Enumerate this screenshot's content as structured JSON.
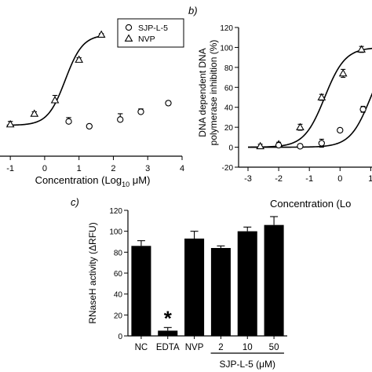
{
  "chart_data": [
    {
      "panel": "a",
      "type": "scatter",
      "xlabel": "Concentration (Log",
      "xlabel_sub": "10",
      "xlabel_unit": " μM)",
      "xlim": [
        -1.3,
        4
      ],
      "ylim": [
        -22,
        122
      ],
      "xticks": [
        -1,
        0,
        1,
        2,
        3,
        4
      ],
      "xtick_labels": [
        "-1",
        "0",
        "1",
        "2",
        "3",
        "4"
      ],
      "legend": {
        "placement": "top-right",
        "entries": [
          {
            "label": "SJP-L-5",
            "marker": "circle"
          },
          {
            "label": "NVP",
            "marker": "triangle"
          }
        ]
      },
      "series": [
        {
          "name": "SJP-L-5",
          "marker": "circle",
          "fit": false,
          "x": [
            0.7,
            1.3,
            2.2,
            2.8,
            3.6
          ],
          "y": [
            14,
            9,
            16,
            24,
            33
          ],
          "err": [
            4,
            2,
            6,
            3,
            2
          ]
        },
        {
          "name": "NVP",
          "marker": "triangle",
          "fit": true,
          "x": [
            -1.0,
            -0.3,
            0.3,
            1.0,
            1.65
          ],
          "y": [
            11,
            22,
            36,
            78,
            104
          ],
          "err": [
            3,
            2,
            5,
            2,
            1
          ]
        }
      ],
      "fits": [
        {
          "series": "NVP",
          "bottom": 10,
          "top": 104,
          "logEC50": 0.6,
          "hill": 1.7,
          "xrange": [
            -1.1,
            1.7
          ]
        }
      ]
    },
    {
      "panel": "b",
      "panel_label": "b)",
      "type": "scatter",
      "ylabel_line1": "DNA dependent DNA",
      "ylabel_line2": "polymerase inhibition (%)",
      "xlabel": "Concentration (Lo",
      "xlim": [
        -3,
        1.4
      ],
      "ylim": [
        -20,
        120
      ],
      "yticks": [
        -20,
        0,
        20,
        40,
        60,
        80,
        100,
        120
      ],
      "ytick_labels": [
        "-20",
        "0",
        "20",
        "40",
        "60",
        "80",
        "100",
        "120"
      ],
      "xticks": [
        -3,
        -2,
        -1,
        0,
        1
      ],
      "xtick_labels": [
        "-3",
        "-2",
        "-1",
        "0",
        "1"
      ],
      "series": [
        {
          "name": "NVP",
          "marker": "triangle",
          "fit": true,
          "x": [
            -2.6,
            -2.0,
            -1.3,
            -0.6,
            0.1,
            0.7
          ],
          "y": [
            1,
            3,
            20,
            50,
            74,
            98
          ],
          "err": [
            2,
            2,
            3,
            3,
            4,
            3
          ]
        },
        {
          "name": "SJP-L-5",
          "marker": "circle",
          "fit": true,
          "x": [
            -2.0,
            -1.3,
            -0.6,
            0.0,
            0.75
          ],
          "y": [
            2,
            1,
            4,
            17,
            38
          ],
          "err": [
            1,
            2,
            4,
            2,
            3
          ]
        }
      ],
      "fits": [
        {
          "series": "NVP",
          "bottom": 0,
          "top": 100,
          "logEC50": -0.5,
          "hill": 1.3,
          "xrange": [
            -3,
            1.4
          ]
        },
        {
          "series": "SJP-L-5",
          "bottom": 0,
          "top": 100,
          "logEC50": 1.0,
          "hill": 1.3,
          "xrange": [
            -3,
            1.4
          ]
        }
      ]
    },
    {
      "panel": "c",
      "panel_label": "c)",
      "type": "bar",
      "ylabel": "RNaseH activity (ΔRFU)",
      "ylim": [
        0,
        120
      ],
      "yticks": [
        0,
        20,
        40,
        60,
        80,
        100,
        120
      ],
      "ytick_labels": [
        "0",
        "20",
        "40",
        "60",
        "80",
        "100",
        "120"
      ],
      "categories": [
        "NC",
        "EDTA",
        "NVP",
        "2",
        "10",
        "50"
      ],
      "values": [
        86,
        5,
        93,
        84,
        100,
        106
      ],
      "errors": [
        5,
        3,
        7,
        2,
        4,
        8
      ],
      "annotation": {
        "category": "EDTA",
        "text": "*"
      },
      "group_label": "SJP-L-5 (μM)",
      "group_categories": [
        "2",
        "10",
        "50"
      ]
    }
  ]
}
